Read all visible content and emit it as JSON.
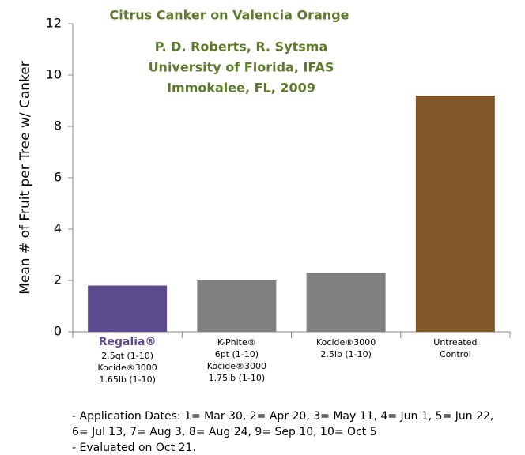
{
  "chart_data": {
    "type": "bar",
    "title": "Citrus Canker on Valencia Orange",
    "subtitle": [
      "P. D.  Roberts, R. Sytsma",
      "University of Florida, IFAS",
      "Immokalee, FL, 2009"
    ],
    "y_label": "Mean # of Fruit per Tree w/ Canker",
    "categories": [
      [
        "Regalia®",
        "2.5qt (1-10)",
        "Kocide®3000",
        "1.65lb (1-10)"
      ],
      [
        "K-Phite®",
        "6pt (1-10)",
        "Kocide®3000",
        "1.75lb (1-10)"
      ],
      [
        "Kocide®3000",
        "2.5lb (1-10)"
      ],
      [
        "Untreated",
        "Control"
      ]
    ],
    "values": [
      1.8,
      2.0,
      2.3,
      9.2
    ],
    "colors": [
      "#5b4a8e",
      "#808080",
      "#808080",
      "#82562b"
    ],
    "ylim": [
      0,
      12
    ],
    "yticks": [
      0,
      2,
      4,
      6,
      8,
      10,
      12
    ],
    "grid": false,
    "notes": [
      "- Application Dates: 1= Mar 30, 2= Apr 20, 3= May 11, 4= Jun 1, 5= Jun 22,",
      "6= Jul 13, 7= Aug 3, 8= Aug 24, 9= Sep 10, 10= Oct 5",
      "- Evaluated on Oct 21."
    ]
  }
}
